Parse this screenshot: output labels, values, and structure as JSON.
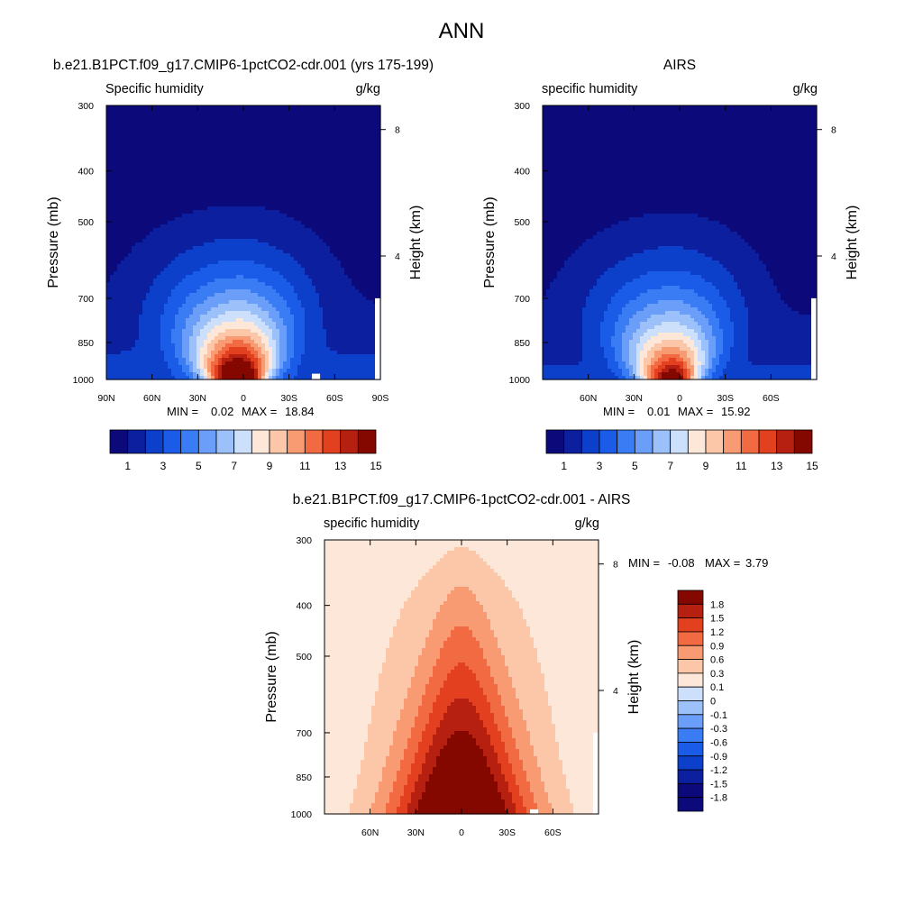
{
  "figure": {
    "title": "ANN"
  },
  "colors": {
    "abs_scale": [
      "#0c0a7a",
      "#0c1f9e",
      "#0c3fca",
      "#1a5ce8",
      "#3a7cf4",
      "#6a9ef8",
      "#9cc0fa",
      "#cce0fc",
      "#fde7d8",
      "#fbc7a8",
      "#f89a72",
      "#f26a42",
      "#e2401f",
      "#b62010",
      "#850800"
    ],
    "diff_scale": [
      "#0c0a7a",
      "#0c1f9e",
      "#0c3fca",
      "#1a5ce8",
      "#3a7cf4",
      "#6a9ef8",
      "#9cc0fa",
      "#cce0fc",
      "#fde7d8",
      "#fbc7a8",
      "#f89a72",
      "#f26a42",
      "#e2401f",
      "#b62010",
      "#850800"
    ],
    "mask": "#ffffff"
  },
  "chart_data": [
    {
      "type": "heatmap",
      "title": "b.e21.B1PCT.f09_g17.CMIP6-1pctCO2-cdr.001 (yrs 175-199)",
      "field_label": "Specific humidity",
      "units_label": "g/kg",
      "ylabel": "Pressure (mb)",
      "y2label": "Height (km)",
      "x_ticks": [
        "90N",
        "60N",
        "30N",
        "0",
        "30S",
        "60S",
        "90S"
      ],
      "x_tick_values": [
        90,
        60,
        30,
        0,
        -30,
        -60,
        -90
      ],
      "xlim": [
        90,
        -90
      ],
      "y_ticks": [
        "300",
        "400",
        "500",
        "700",
        "850",
        "1000"
      ],
      "y_tick_values": [
        300,
        400,
        500,
        700,
        850,
        1000
      ],
      "y2_ticks": [
        "8",
        "4"
      ],
      "y2_tick_values": [
        8,
        4
      ],
      "ylim": [
        1000,
        300
      ],
      "min_label": "MIN =",
      "min_value": "0.02",
      "max_label": "MAX =",
      "max_value": "18.84",
      "contour_levels": [
        1,
        2,
        3,
        4,
        5,
        6,
        7,
        8,
        9,
        10,
        11,
        12,
        13,
        14,
        15
      ],
      "colorbar_labels": [
        "1",
        "3",
        "5",
        "7",
        "9",
        "11",
        "13",
        "15"
      ],
      "colorbar_orientation": "horizontal",
      "peak_value": 18.84,
      "peak_latitude": 3
    },
    {
      "type": "heatmap",
      "title": "AIRS",
      "field_label": "specific humidity",
      "units_label": "g/kg",
      "ylabel": "Pressure (mb)",
      "y2label": "Height (km)",
      "x_ticks": [
        "60N",
        "30N",
        "0",
        "30S",
        "60S"
      ],
      "x_tick_values": [
        60,
        30,
        0,
        -30,
        -60
      ],
      "xlim": [
        90,
        -90
      ],
      "y_ticks": [
        "300",
        "400",
        "500",
        "700",
        "850",
        "1000"
      ],
      "y_tick_values": [
        300,
        400,
        500,
        700,
        850,
        1000
      ],
      "y2_ticks": [
        "8",
        "4"
      ],
      "y2_tick_values": [
        8,
        4
      ],
      "ylim": [
        1000,
        300
      ],
      "min_label": "MIN =",
      "min_value": "0.01",
      "max_label": "MAX =",
      "max_value": "15.92",
      "contour_levels": [
        1,
        2,
        3,
        4,
        5,
        6,
        7,
        8,
        9,
        10,
        11,
        12,
        13,
        14,
        15
      ],
      "colorbar_labels": [
        "1",
        "3",
        "5",
        "7",
        "9",
        "11",
        "13",
        "15"
      ],
      "colorbar_orientation": "horizontal",
      "peak_value": 15.92,
      "peak_latitude": 5
    },
    {
      "type": "heatmap",
      "title": "b.e21.B1PCT.f09_g17.CMIP6-1pctCO2-cdr.001 - AIRS",
      "field_label": "specific humidity",
      "units_label": "g/kg",
      "ylabel": "Pressure (mb)",
      "y2label": "Height (km)",
      "x_ticks": [
        "60N",
        "30N",
        "0",
        "30S",
        "60S"
      ],
      "x_tick_values": [
        60,
        30,
        0,
        -30,
        -60
      ],
      "xlim": [
        90,
        -90
      ],
      "y_ticks": [
        "300",
        "400",
        "500",
        "700",
        "850",
        "1000"
      ],
      "y_tick_values": [
        300,
        400,
        500,
        700,
        850,
        1000
      ],
      "y2_ticks": [
        "8",
        "4"
      ],
      "y2_tick_values": [
        8,
        4
      ],
      "ylim": [
        1000,
        300
      ],
      "min_label": "MIN =",
      "min_value": "-0.08",
      "max_label": "MAX =",
      "max_value": "3.79",
      "contour_levels": [
        -1.8,
        -1.5,
        -1.2,
        -0.9,
        -0.6,
        -0.3,
        -0.1,
        0,
        0.1,
        0.3,
        0.6,
        0.9,
        1.2,
        1.5,
        1.8
      ],
      "colorbar_labels": [
        "-1.8",
        "-1.5",
        "-1.2",
        "-0.9",
        "-0.6",
        "-0.3",
        "-0.1",
        "0",
        "0.1",
        "0.3",
        "0.6",
        "0.9",
        "1.2",
        "1.5",
        "1.8"
      ],
      "colorbar_orientation": "vertical",
      "peak_value": 3.79,
      "peak_latitude": 0
    }
  ]
}
